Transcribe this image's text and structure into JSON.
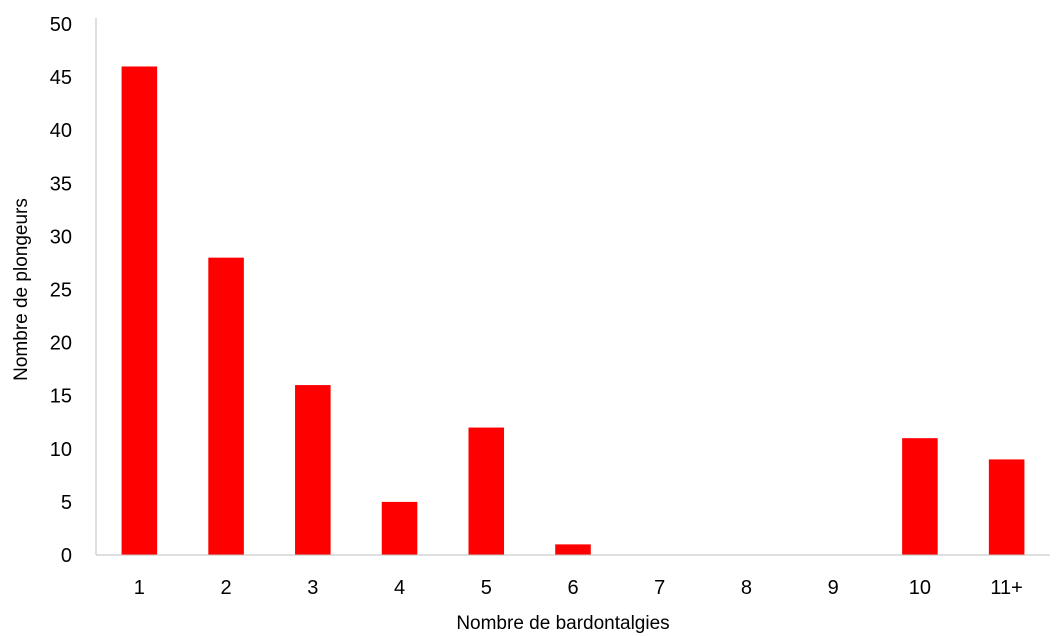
{
  "chart_data": {
    "type": "bar",
    "title": "",
    "xlabel": "Nombre de bardontalgies",
    "ylabel": "Nombre de plongeurs",
    "categories": [
      "1",
      "2",
      "3",
      "4",
      "5",
      "6",
      "7",
      "8",
      "9",
      "10",
      "11+"
    ],
    "series": [
      {
        "values": [
          46,
          28,
          16,
          5,
          12,
          1,
          0,
          0,
          0,
          11,
          9
        ]
      }
    ],
    "ylim": [
      0,
      50
    ],
    "yticks": [
      0,
      5,
      10,
      15,
      20,
      25,
      30,
      35,
      40,
      45,
      50
    ],
    "grid": false,
    "legend": "none",
    "colors": {
      "bar": "#ff0000",
      "axis": "#bfbfbf"
    }
  }
}
